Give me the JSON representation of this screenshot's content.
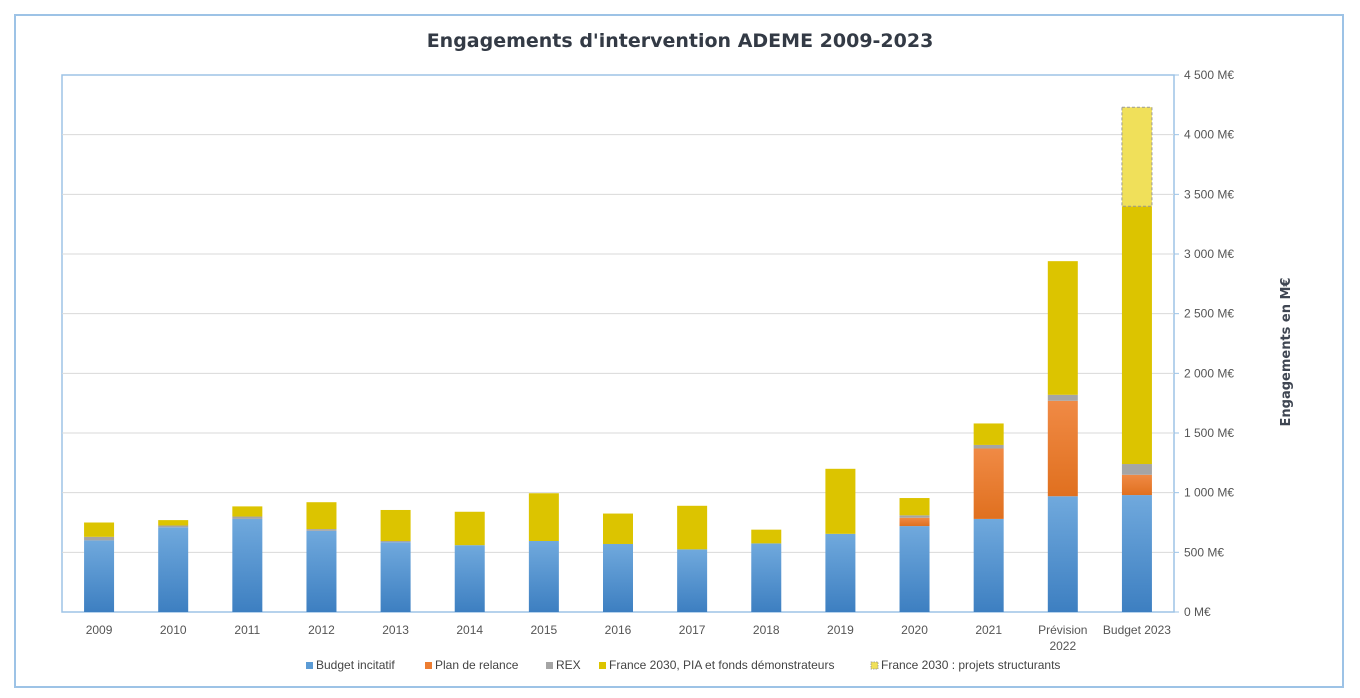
{
  "chart_data": {
    "type": "bar",
    "stacked": true,
    "title": "Engagements d'intervention ADEME 2009-2023",
    "ylabel": "Engagements en M€",
    "xlabel": "",
    "ylim": [
      0,
      4500
    ],
    "yticks": [
      0,
      500,
      1000,
      1500,
      2000,
      2500,
      3000,
      3500,
      4000,
      4500
    ],
    "ytick_labels": [
      "0 M€",
      "500 M€",
      "1 000 M€",
      "1 500 M€",
      "2 000 M€",
      "2 500 M€",
      "3 000 M€",
      "3 500 M€",
      "4 000 M€",
      "4 500 M€"
    ],
    "y_axis_side": "right",
    "grid": true,
    "legend_position": "bottom",
    "categories": [
      [
        "2009"
      ],
      [
        "2010"
      ],
      [
        "2011"
      ],
      [
        "2012"
      ],
      [
        "2013"
      ],
      [
        "2014"
      ],
      [
        "2015"
      ],
      [
        "2016"
      ],
      [
        "2017"
      ],
      [
        "2018"
      ],
      [
        "2019"
      ],
      [
        "2020"
      ],
      [
        "2021"
      ],
      [
        "Prévision",
        "2022"
      ],
      [
        "Budget 2023"
      ]
    ],
    "series": [
      {
        "name": "Budget incitatif",
        "color": "#5b9bd5",
        "values": [
          600,
          710,
          780,
          680,
          585,
          560,
          595,
          570,
          525,
          575,
          655,
          720,
          780,
          970,
          980
        ]
      },
      {
        "name": "Plan de relance",
        "color": "#ed7d31",
        "values": [
          0,
          0,
          0,
          0,
          0,
          0,
          0,
          0,
          0,
          0,
          0,
          70,
          590,
          800,
          170
        ]
      },
      {
        "name": "REX",
        "color": "#a5a5a5",
        "values": [
          30,
          15,
          20,
          15,
          10,
          0,
          0,
          0,
          0,
          0,
          0,
          20,
          30,
          50,
          90
        ]
      },
      {
        "name": "France 2030, PIA et fonds démonstrateurs",
        "color": "#dcc400",
        "values": [
          120,
          45,
          85,
          225,
          260,
          280,
          400,
          255,
          365,
          115,
          545,
          145,
          180,
          1120,
          2160
        ]
      },
      {
        "name": "France 2030 : projets structurants",
        "color": "#f0e05a",
        "dashed": true,
        "values": [
          0,
          0,
          0,
          0,
          0,
          0,
          0,
          0,
          0,
          0,
          0,
          0,
          0,
          0,
          830
        ]
      }
    ]
  }
}
